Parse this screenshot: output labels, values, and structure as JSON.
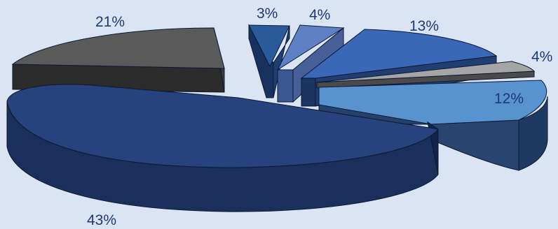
{
  "chart_data": {
    "type": "pie",
    "style": "3d-exploded",
    "title": "",
    "legend": "none",
    "slices": [
      {
        "label": "43%",
        "value": 43,
        "color": "#27437d"
      },
      {
        "label": "21%",
        "value": 21,
        "color": "#5c5c5c"
      },
      {
        "label": "3%",
        "value": 3,
        "color": "#24528f"
      },
      {
        "label": "4%",
        "value": 4,
        "color": "#5c7ec4"
      },
      {
        "label": "13%",
        "value": 13,
        "color": "#3967b8"
      },
      {
        "label": "4%",
        "value": 4,
        "color": "#a3a3a3"
      },
      {
        "label": "12%",
        "value": 12,
        "color": "#5793cf"
      }
    ]
  }
}
